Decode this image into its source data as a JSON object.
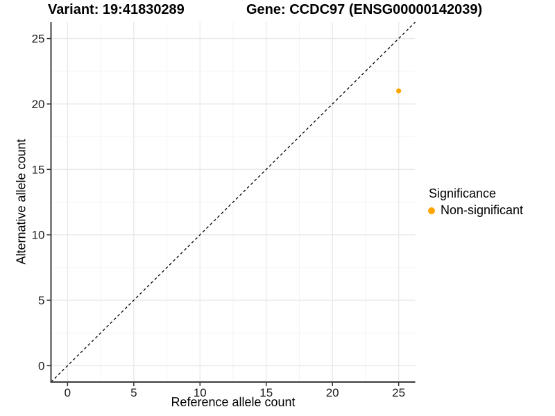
{
  "titles": {
    "variant": "Variant: 19:41830289",
    "gene": "Gene: CCDC97 (ENSG00000142039)"
  },
  "chart_data": {
    "type": "scatter",
    "title_left": "Variant: 19:41830289",
    "title_right": "Gene: CCDC97 (ENSG00000142039)",
    "xlabel": "Reference allele count",
    "ylabel": "Alternative allele count",
    "xlim": [
      -1.25,
      26.25
    ],
    "ylim": [
      -1.25,
      26.25
    ],
    "x_ticks": [
      0,
      5,
      10,
      15,
      20,
      25
    ],
    "y_ticks": [
      0,
      5,
      10,
      15,
      20,
      25
    ],
    "x_minor_ticks": [
      2.5,
      7.5,
      12.5,
      17.5,
      22.5
    ],
    "y_minor_ticks": [
      2.5,
      7.5,
      12.5,
      17.5,
      22.5
    ],
    "grid": true,
    "identity_line": {
      "style": "dashed",
      "equation": "y = x",
      "color": "#000000"
    },
    "points": [
      {
        "x": 25,
        "y": 21,
        "series": "Non-significant"
      }
    ],
    "legend": {
      "title": "Significance",
      "position": "right",
      "items": [
        {
          "label": "Non-significant",
          "color": "#FFA500"
        }
      ]
    }
  },
  "colors": {
    "point": "#FFA500",
    "grid_major": "#e9e9e9",
    "grid_minor": "#f3f3f3",
    "axis_line": "#3d3d3d",
    "tick_mark": "#333333",
    "tick_label": "#1a1a1a",
    "diagonal": "#000000",
    "background": "#ffffff"
  }
}
